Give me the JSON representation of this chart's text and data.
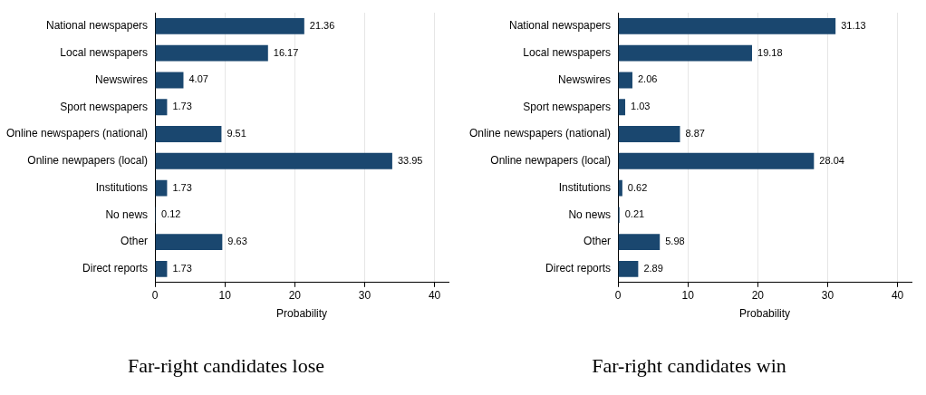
{
  "chart_data": [
    {
      "type": "bar",
      "orientation": "horizontal",
      "title": "Far-right candidates lose",
      "xlabel": "Probability",
      "categories": [
        "National newspapers",
        "Local newspapers",
        "Newswires",
        "Sport newspapers",
        "Online newspapers (national)",
        "Online newpapers (local)",
        "Institutions",
        "No news",
        "Other",
        "Direct reports"
      ],
      "values": [
        21.36,
        16.17,
        4.07,
        1.73,
        9.51,
        33.95,
        1.73,
        0.12,
        9.63,
        1.73
      ],
      "color": "#1a476f",
      "xlim": [
        0,
        42
      ],
      "xticks": [
        0,
        10,
        20,
        30,
        40
      ],
      "grid": "x",
      "data_labels": true,
      "legend": false
    },
    {
      "type": "bar",
      "orientation": "horizontal",
      "title": "Far-right candidates win",
      "xlabel": "Probability",
      "categories": [
        "National newspapers",
        "Local newspapers",
        "Newswires",
        "Sport newspapers",
        "Online newspapers (national)",
        "Online newpapers (local)",
        "Institutions",
        "No news",
        "Other",
        "Direct reports"
      ],
      "values": [
        31.13,
        19.18,
        2.06,
        1.03,
        8.87,
        28.04,
        0.62,
        0.21,
        5.98,
        2.89
      ],
      "color": "#1a476f",
      "xlim": [
        0,
        42
      ],
      "xticks": [
        0,
        10,
        20,
        30,
        40
      ],
      "grid": "x",
      "data_labels": true,
      "legend": false
    }
  ]
}
